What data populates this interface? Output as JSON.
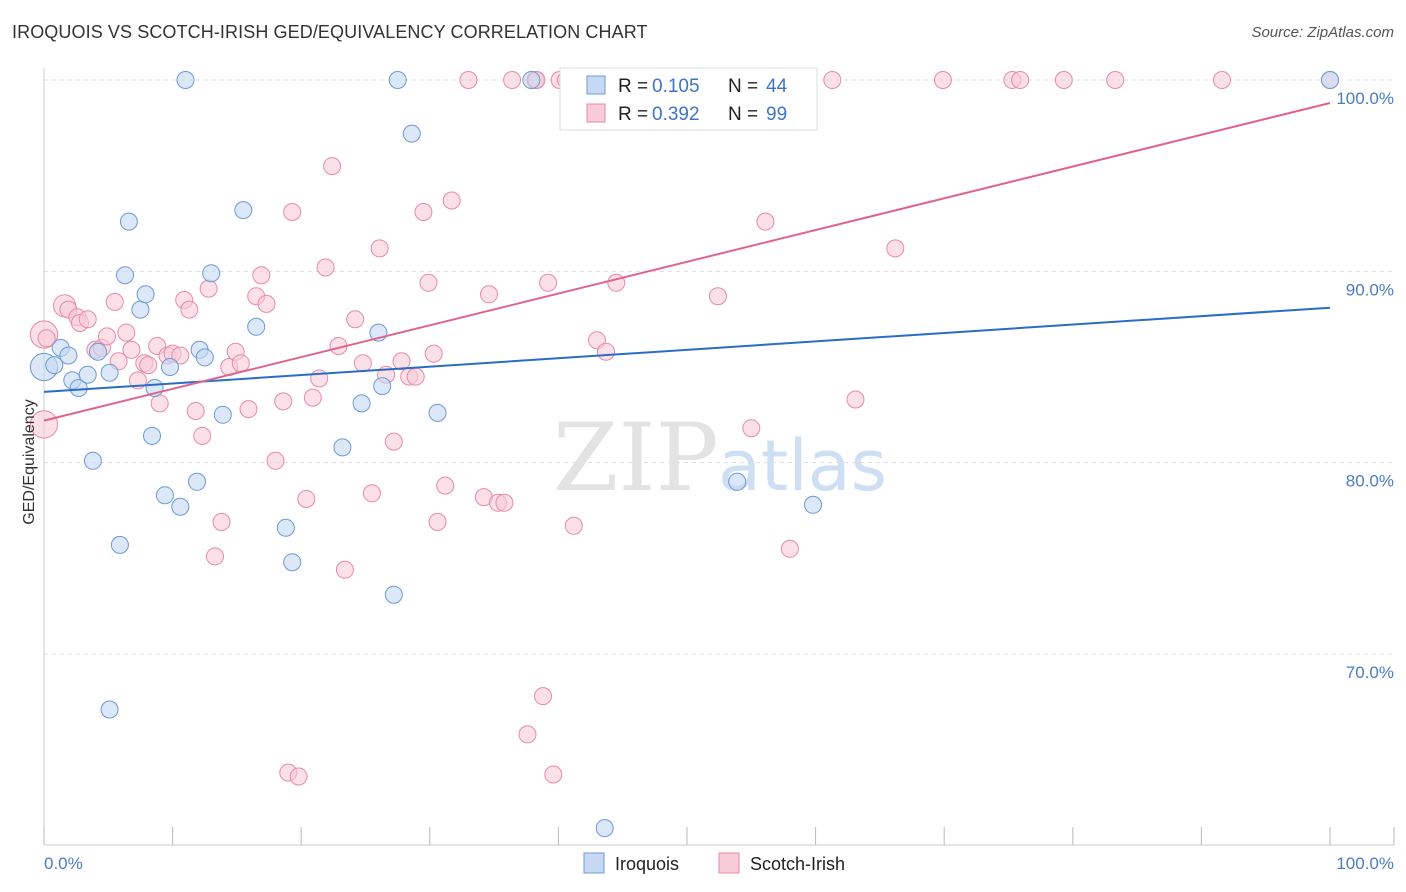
{
  "title": "IROQUOIS VS SCOTCH-IRISH GED/EQUIVALENCY CORRELATION CHART",
  "source": "Source: ZipAtlas.com",
  "watermark": {
    "zip": "ZIP",
    "atlas": "atlas"
  },
  "colors": {
    "iroquois_fill": "#c5d9f3",
    "iroquois_stroke": "#6c9ad6",
    "iroquois_line": "#2a6cc8",
    "scotch_fill": "#f8cbd9",
    "scotch_stroke": "#e88aa8",
    "scotch_line": "#e0638e",
    "tick_text": "#4a7cc4",
    "grid": "#dddddd"
  },
  "legend": {
    "rows": [
      {
        "r_label": "R =",
        "r_value": "0.105",
        "n_label": "N =",
        "n_value": "44"
      },
      {
        "r_label": "R =",
        "r_value": "0.392",
        "n_label": "N =",
        "n_value": "99"
      }
    ]
  },
  "bottom_legend": [
    "Iroquois",
    "Scotch-Irish"
  ],
  "chart_data": {
    "type": "scatter",
    "ylabel": "GED/Equivalency",
    "xlabel": "",
    "xlim": [
      0,
      100
    ],
    "ylim": [
      60.5,
      102
    ],
    "x_tick_labels": [
      "0.0%",
      "100.0%"
    ],
    "y_ticks": [
      70,
      80,
      90,
      100
    ],
    "y_tick_labels": [
      "70.0%",
      "80.0%",
      "90.0%",
      "100.0%"
    ],
    "grid": true,
    "legend_position": "top-center",
    "series": [
      {
        "name": "Iroquois",
        "R": 0.105,
        "N": 44,
        "trend": {
          "x": [
            0,
            100
          ],
          "y": [
            83.7,
            88.1
          ]
        },
        "points": [
          [
            0,
            85,
            1.6
          ],
          [
            0.8,
            85.1,
            1
          ],
          [
            1.3,
            86.0,
            1
          ],
          [
            1.9,
            85.6,
            1
          ],
          [
            2.2,
            84.3,
            1
          ],
          [
            2.7,
            83.9,
            1
          ],
          [
            3.4,
            84.6,
            1
          ],
          [
            3.8,
            80.1,
            1
          ],
          [
            4.2,
            85.8,
            1
          ],
          [
            5.1,
            67.1,
            1
          ],
          [
            5.1,
            84.7,
            1
          ],
          [
            5.9,
            75.7,
            1
          ],
          [
            6.3,
            89.8,
            1
          ],
          [
            6.6,
            92.6,
            1
          ],
          [
            7.5,
            88.0,
            1
          ],
          [
            7.9,
            88.8,
            1
          ],
          [
            8.4,
            81.4,
            1
          ],
          [
            8.6,
            83.9,
            1
          ],
          [
            9.4,
            78.3,
            1
          ],
          [
            9.8,
            85.0,
            1
          ],
          [
            10.6,
            77.7,
            1
          ],
          [
            11.0,
            100,
            1
          ],
          [
            11.9,
            79.0,
            1
          ],
          [
            12.1,
            85.9,
            1
          ],
          [
            12.5,
            85.5,
            1
          ],
          [
            13.0,
            89.9,
            1
          ],
          [
            13.9,
            82.5,
            1
          ],
          [
            15.5,
            93.2,
            1
          ],
          [
            16.5,
            87.1,
            1
          ],
          [
            18.8,
            76.6,
            1
          ],
          [
            19.3,
            74.8,
            1
          ],
          [
            23.2,
            80.8,
            1
          ],
          [
            24.7,
            83.1,
            1
          ],
          [
            26.0,
            86.8,
            1
          ],
          [
            26.3,
            84.0,
            1
          ],
          [
            27.2,
            73.1,
            1
          ],
          [
            27.5,
            100,
            1
          ],
          [
            28.6,
            97.2,
            1
          ],
          [
            30.6,
            82.6,
            1
          ],
          [
            37.9,
            100,
            1
          ],
          [
            43.6,
            60.9,
            1
          ],
          [
            53.9,
            79.0,
            1
          ],
          [
            59.8,
            77.8,
            1
          ],
          [
            100,
            100,
            1
          ]
        ]
      },
      {
        "name": "Scotch-Irish",
        "R": 0.392,
        "N": 99,
        "trend": {
          "x": [
            0,
            100
          ],
          "y": [
            82.2,
            98.8
          ]
        },
        "points": [
          [
            0,
            82.0,
            1.6
          ],
          [
            0,
            86.7,
            1.6
          ],
          [
            0.2,
            86.5,
            1
          ],
          [
            1.6,
            88.2,
            1.3
          ],
          [
            1.9,
            88.0,
            1
          ],
          [
            2.6,
            87.6,
            1
          ],
          [
            2.8,
            87.3,
            1
          ],
          [
            3.4,
            87.5,
            1
          ],
          [
            4.0,
            85.9,
            1
          ],
          [
            4.5,
            86.0,
            1
          ],
          [
            4.9,
            86.6,
            1
          ],
          [
            5.5,
            88.4,
            1
          ],
          [
            5.8,
            85.3,
            1
          ],
          [
            6.4,
            86.8,
            1
          ],
          [
            6.8,
            85.9,
            1
          ],
          [
            7.3,
            84.3,
            1
          ],
          [
            7.8,
            85.2,
            1
          ],
          [
            8.1,
            85.1,
            1
          ],
          [
            8.8,
            86.1,
            1
          ],
          [
            9.0,
            83.1,
            1
          ],
          [
            9.6,
            85.6,
            1
          ],
          [
            10.0,
            85.7,
            1
          ],
          [
            10.6,
            85.6,
            1
          ],
          [
            10.9,
            88.5,
            1
          ],
          [
            11.3,
            88.0,
            1
          ],
          [
            11.8,
            82.7,
            1
          ],
          [
            12.3,
            81.4,
            1
          ],
          [
            12.8,
            89.1,
            1
          ],
          [
            13.3,
            75.1,
            1
          ],
          [
            13.8,
            76.9,
            1
          ],
          [
            14.4,
            85.0,
            1
          ],
          [
            14.9,
            85.8,
            1
          ],
          [
            15.3,
            85.2,
            1
          ],
          [
            15.9,
            82.8,
            1
          ],
          [
            16.5,
            88.7,
            1
          ],
          [
            16.9,
            89.8,
            1
          ],
          [
            17.3,
            88.3,
            1
          ],
          [
            18.0,
            80.1,
            1
          ],
          [
            18.6,
            83.2,
            1
          ],
          [
            19.0,
            63.8,
            1
          ],
          [
            19.3,
            93.1,
            1
          ],
          [
            19.8,
            63.6,
            1
          ],
          [
            20.4,
            78.1,
            1
          ],
          [
            20.9,
            83.4,
            1
          ],
          [
            21.4,
            84.4,
            1
          ],
          [
            21.9,
            90.2,
            1
          ],
          [
            22.4,
            95.5,
            1
          ],
          [
            22.9,
            86.1,
            1
          ],
          [
            23.4,
            74.4,
            1
          ],
          [
            24.2,
            87.5,
            1
          ],
          [
            24.8,
            85.2,
            1
          ],
          [
            25.5,
            78.4,
            1
          ],
          [
            26.1,
            91.2,
            1
          ],
          [
            26.6,
            84.6,
            1
          ],
          [
            27.2,
            81.1,
            1
          ],
          [
            27.8,
            85.3,
            1
          ],
          [
            28.4,
            84.5,
            1
          ],
          [
            28.9,
            84.5,
            1
          ],
          [
            29.5,
            93.1,
            1
          ],
          [
            29.9,
            89.4,
            1
          ],
          [
            30.3,
            85.7,
            1
          ],
          [
            30.6,
            76.9,
            1
          ],
          [
            31.2,
            78.8,
            1
          ],
          [
            31.7,
            93.7,
            1
          ],
          [
            33.0,
            100,
            1
          ],
          [
            34.2,
            78.2,
            1
          ],
          [
            34.6,
            88.8,
            1
          ],
          [
            35.3,
            77.9,
            1
          ],
          [
            35.8,
            77.9,
            1
          ],
          [
            36.4,
            100,
            1
          ],
          [
            37.6,
            65.8,
            1
          ],
          [
            38.2,
            100,
            1
          ],
          [
            38.3,
            100,
            1
          ],
          [
            38.8,
            67.8,
            1
          ],
          [
            39.2,
            89.4,
            1
          ],
          [
            39.6,
            63.7,
            1
          ],
          [
            40.1,
            100,
            1
          ],
          [
            40.6,
            100,
            1
          ],
          [
            41.2,
            76.7,
            1
          ],
          [
            43.0,
            86.4,
            1
          ],
          [
            43.7,
            85.8,
            1
          ],
          [
            44.5,
            89.4,
            1
          ],
          [
            46.0,
            100,
            1
          ],
          [
            50.6,
            100,
            1
          ],
          [
            52.4,
            88.7,
            1
          ],
          [
            55.0,
            81.8,
            1
          ],
          [
            56.1,
            92.6,
            1
          ],
          [
            56.8,
            100,
            1
          ],
          [
            58.0,
            75.5,
            1
          ],
          [
            61.3,
            100,
            1
          ],
          [
            63.1,
            83.3,
            1
          ],
          [
            66.2,
            91.2,
            1
          ],
          [
            69.9,
            100,
            1
          ],
          [
            75.3,
            100,
            1
          ],
          [
            75.9,
            100,
            1
          ],
          [
            79.3,
            100,
            1
          ],
          [
            83.3,
            100,
            1
          ],
          [
            91.6,
            100,
            1
          ],
          [
            100,
            100,
            1
          ]
        ]
      }
    ]
  }
}
